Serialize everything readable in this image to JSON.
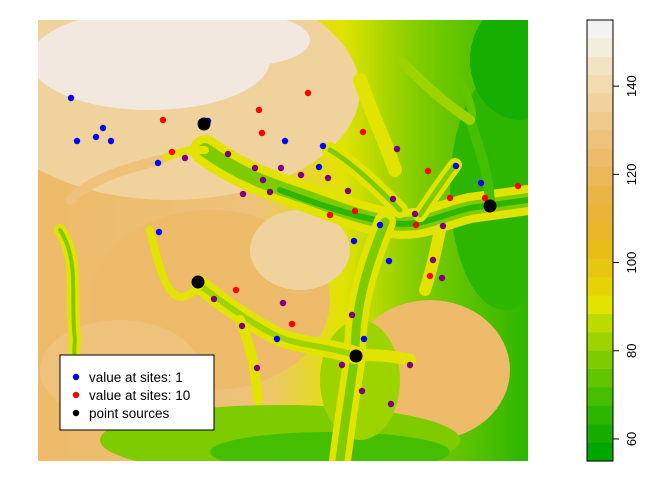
{
  "colorbar": {
    "ticks": [
      "60",
      "80",
      "100",
      "120",
      "140"
    ],
    "tick_values": [
      60,
      80,
      100,
      120,
      140
    ],
    "range": [
      55,
      155
    ],
    "colors": [
      "#00A600",
      "#16AD00",
      "#2DB600",
      "#46BE00",
      "#61C500",
      "#7ECC00",
      "#9DD400",
      "#BEDB00",
      "#E2E300",
      "#E5D307",
      "#E7C60F",
      "#E8BD17",
      "#E9B727",
      "#EAB537",
      "#EBB447",
      "#ECB758",
      "#EDBB69",
      "#EEC27A",
      "#EFCA8B",
      "#F0D29D",
      "#F1DBAF",
      "#F2E4C2",
      "#F2EEDC",
      "#F2F2F2"
    ]
  },
  "legend": {
    "items": [
      {
        "label": "value at sites: 1",
        "color": "#0000FF"
      },
      {
        "label": "value at sites: 10",
        "color": "#FF0000"
      },
      {
        "label": "point sources",
        "color": "#000000"
      }
    ]
  },
  "map": {
    "colors": {
      "lowland": "#14AF00",
      "valley": "#7ECC00",
      "slope": "#E2E300",
      "upland": "#EDBB69",
      "highland": "#F0D29D",
      "peak": "#F2E8E0"
    }
  }
}
